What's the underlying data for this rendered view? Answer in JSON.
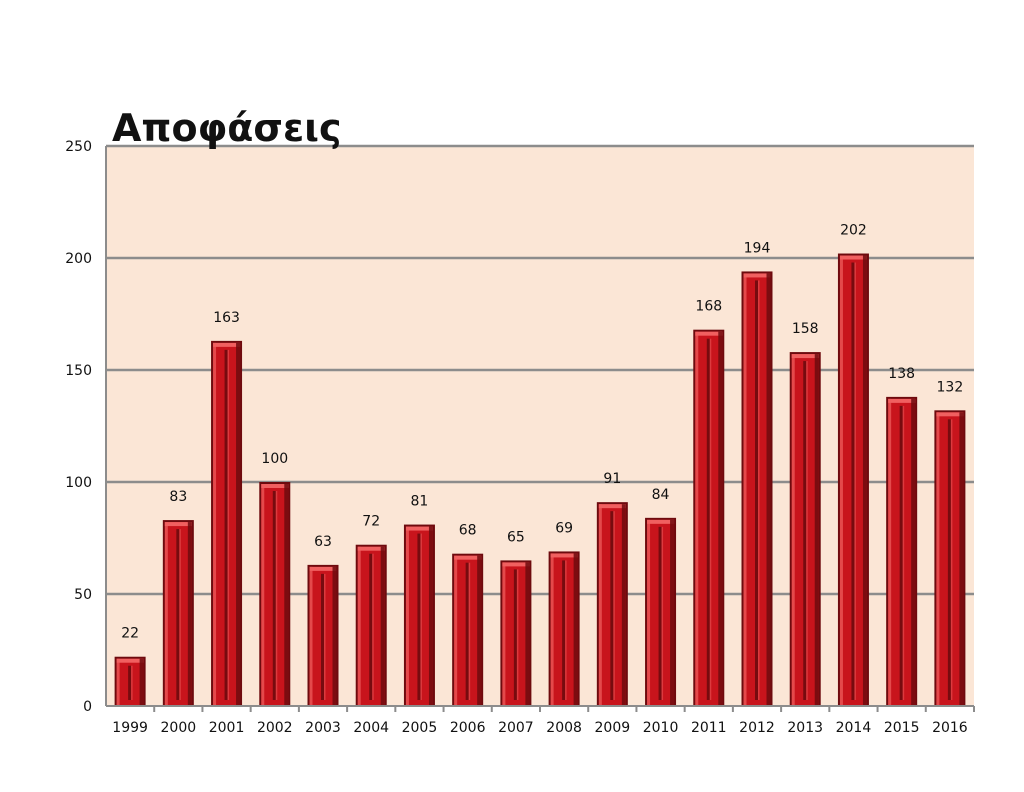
{
  "chart_data": {
    "type": "bar",
    "title": "Αποφάσεις",
    "categories": [
      "1999",
      "2000",
      "2001",
      "2002",
      "2003",
      "2004",
      "2005",
      "2006",
      "2007",
      "2008",
      "2009",
      "2010",
      "2011",
      "2012",
      "2013",
      "2014",
      "2015",
      "2016"
    ],
    "values": [
      22,
      83,
      163,
      100,
      63,
      72,
      81,
      68,
      65,
      69,
      91,
      84,
      168,
      194,
      158,
      202,
      138,
      132
    ],
    "yticks": [
      "0",
      "50",
      "100",
      "150",
      "200",
      "250"
    ],
    "ylim": [
      0,
      250
    ],
    "xlabel": "",
    "ylabel": "",
    "grid": true,
    "legend": "none",
    "colors": {
      "bar": "#c8141c",
      "bar_dark": "#6e0a0e",
      "bar_light": "#f06060",
      "plot_bg": "#fbe6d6",
      "grid": "#8c8c8c"
    }
  }
}
